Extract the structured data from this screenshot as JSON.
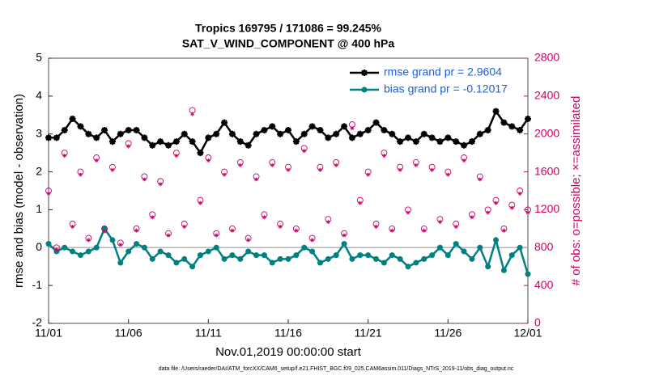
{
  "chart_data": {
    "type": "line",
    "title": "Tropics 169795 / 171086 = 99.245%",
    "subtitle": "SAT_V_WIND_COMPONENT @ 400 hPa",
    "x_label": "Nov.01,2019 00:00:00 start",
    "y_label": "rmse and bias (model - observation)",
    "y2_label": "# of obs: o=possible; ×=assimilated",
    "footer": "data file: /Users/raeder/DAI/ATM_forcXX/CAM6_setup/f.e21.FHIST_BGC.f09_025.CAM6assim.011/Diags_NTrS_2019-11/obs_diag_output.nc",
    "x": [
      0,
      0.5,
      1,
      1.5,
      2,
      2.5,
      3,
      3.5,
      4,
      4.5,
      5,
      5.5,
      6,
      6.5,
      7,
      7.5,
      8,
      8.5,
      9,
      9.5,
      10,
      10.5,
      11,
      11.5,
      12,
      12.5,
      13,
      13.5,
      14,
      14.5,
      15,
      15.5,
      16,
      16.5,
      17,
      17.5,
      18,
      18.5,
      19,
      19.5,
      20,
      20.5,
      21,
      21.5,
      22,
      22.5,
      23,
      23.5,
      24,
      24.5,
      25,
      25.5,
      26,
      26.5,
      27,
      27.5,
      28,
      28.5,
      29,
      29.5,
      30
    ],
    "xlim": [
      0,
      30
    ],
    "xticks": [
      {
        "value": 0,
        "label": "11/01"
      },
      {
        "value": 5,
        "label": "11/06"
      },
      {
        "value": 10,
        "label": "11/11"
      },
      {
        "value": 15,
        "label": "11/16"
      },
      {
        "value": 20,
        "label": "11/21"
      },
      {
        "value": 25,
        "label": "11/26"
      },
      {
        "value": 30,
        "label": "12/01"
      }
    ],
    "ylim": [
      -2,
      5
    ],
    "yticks": [
      -2,
      -1,
      0,
      1,
      2,
      3,
      4,
      5
    ],
    "y2lim": [
      0,
      2800
    ],
    "y2ticks": [
      0,
      400,
      800,
      1200,
      1600,
      2000,
      2400,
      2800
    ],
    "legend": "upper right",
    "series": [
      {
        "name": "rmse grand pr = 2.9604",
        "color": "#000000",
        "marker": "star",
        "values": [
          2.9,
          2.9,
          3.1,
          3.4,
          3.2,
          3.0,
          2.9,
          3.1,
          2.8,
          3.0,
          3.1,
          3.1,
          2.9,
          2.7,
          2.8,
          2.7,
          2.8,
          3.0,
          2.8,
          2.5,
          2.9,
          3.0,
          3.3,
          3.0,
          2.8,
          2.7,
          3.0,
          3.1,
          3.2,
          3.0,
          3.1,
          2.8,
          3.0,
          3.2,
          3.1,
          2.9,
          3.0,
          3.2,
          2.9,
          3.0,
          3.1,
          3.3,
          3.1,
          3.0,
          2.8,
          2.9,
          2.8,
          3.0,
          2.9,
          2.8,
          2.9,
          2.8,
          2.7,
          2.8,
          3.0,
          3.1,
          3.6,
          3.3,
          3.2,
          3.1,
          3.4
        ]
      },
      {
        "name": "bias grand pr = -0.12017",
        "color": "#008080",
        "marker": "circle",
        "values": [
          0.1,
          -0.1,
          0.0,
          -0.1,
          -0.2,
          -0.1,
          0.0,
          0.5,
          0.2,
          -0.4,
          -0.1,
          0.1,
          0.0,
          -0.3,
          -0.1,
          -0.2,
          -0.4,
          -0.3,
          -0.5,
          -0.2,
          -0.1,
          0.0,
          -0.3,
          -0.2,
          -0.3,
          -0.1,
          -0.2,
          -0.2,
          -0.4,
          -0.3,
          -0.3,
          -0.2,
          0.0,
          -0.1,
          -0.4,
          -0.3,
          -0.2,
          0.1,
          -0.3,
          -0.2,
          -0.2,
          -0.3,
          -0.4,
          -0.2,
          -0.3,
          -0.5,
          -0.4,
          -0.3,
          -0.2,
          0.0,
          -0.2,
          0.1,
          -0.1,
          -0.3,
          0.0,
          -0.5,
          0.2,
          -0.6,
          -0.2,
          0.0,
          -0.7
        ]
      },
      {
        "color": "#cc0066",
        "marker": "circle-open",
        "axis": "y2",
        "values": [
          1400,
          800,
          1800,
          1050,
          1600,
          900,
          1750,
          1000,
          1650,
          850,
          1900,
          1000,
          1550,
          1150,
          1500,
          950,
          1800,
          1050,
          2250,
          1300,
          1750,
          950,
          1600,
          1000,
          1700,
          900,
          1550,
          1150,
          1700,
          1050,
          1650,
          1000,
          1850,
          900,
          1650,
          1100,
          1700,
          950,
          2100,
          1300,
          1600,
          1050,
          1800,
          1000,
          1650,
          1200,
          1700,
          1000,
          1650,
          1100,
          1600,
          1050,
          1750,
          1150,
          1550,
          1200,
          1300,
          1000,
          1250,
          1400,
          1200
        ]
      },
      {
        "color": "#cc0066",
        "marker": "asterisk",
        "axis": "y2",
        "values": [
          1370,
          780,
          1770,
          1020,
          1570,
          880,
          1720,
          970,
          1620,
          830,
          1870,
          980,
          1520,
          1120,
          1470,
          930,
          1770,
          1020,
          2210,
          1270,
          1720,
          930,
          1570,
          980,
          1670,
          880,
          1520,
          1120,
          1670,
          1020,
          1620,
          980,
          1820,
          880,
          1620,
          1070,
          1670,
          930,
          2060,
          1270,
          1570,
          1020,
          1770,
          980,
          1620,
          1170,
          1670,
          980,
          1620,
          1070,
          1570,
          1020,
          1720,
          1120,
          1520,
          1170,
          1270,
          980,
          1220,
          1370,
          1170
        ]
      }
    ]
  }
}
